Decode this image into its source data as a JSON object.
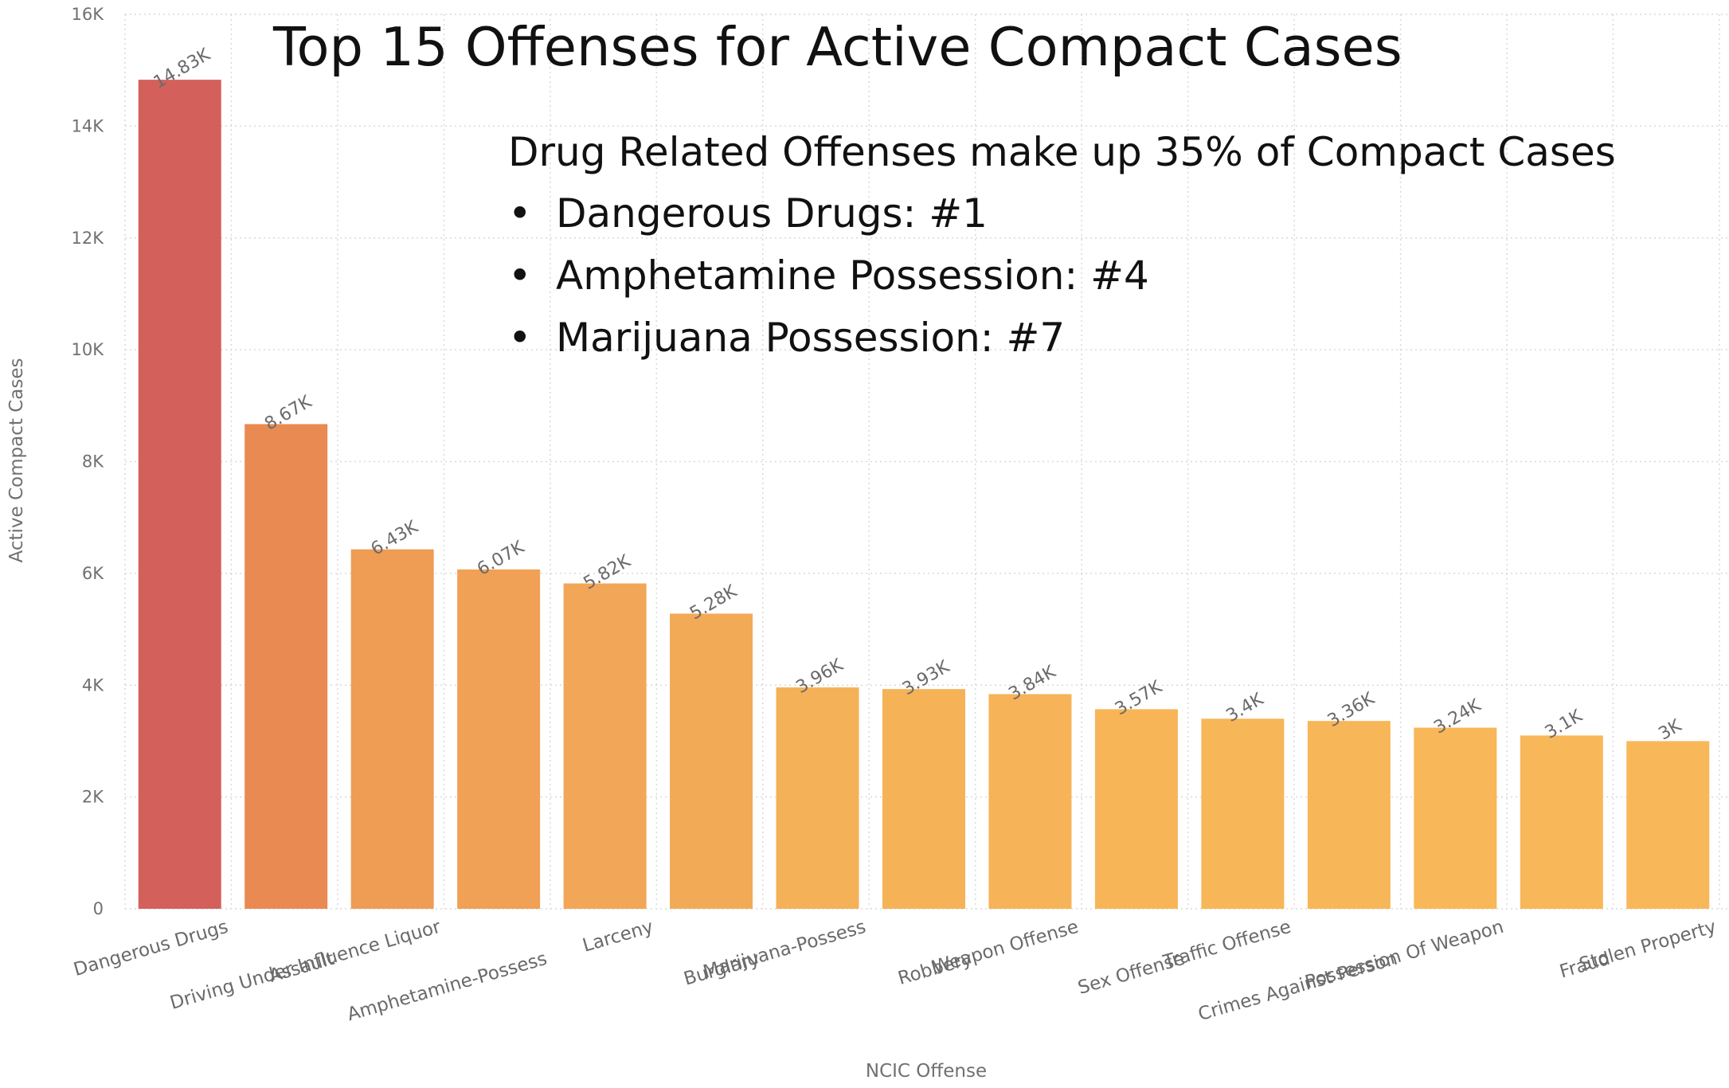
{
  "chart_data": {
    "type": "bar",
    "title": "Top 15 Offenses for Active Compact Cases",
    "xlabel": "NCIC Offense",
    "ylabel": "Active Compact Cases",
    "ylim": [
      0,
      16000
    ],
    "yticks": [
      0,
      2000,
      4000,
      6000,
      8000,
      10000,
      12000,
      14000,
      16000
    ],
    "ytick_labels": [
      "0",
      "2K",
      "4K",
      "6K",
      "8K",
      "10K",
      "12K",
      "14K",
      "16K"
    ],
    "grid": true,
    "categories": [
      "Dangerous Drugs",
      "Assault",
      "Driving Under Influence Liquor",
      "Amphetamine-Possess",
      "Larceny",
      "Burglary",
      "Marijuana-Possess",
      "Robbery",
      "Weapon Offense",
      "Sex Offense",
      "Traffic Offense",
      "Crimes Against Person",
      "Possession Of Weapon",
      "Fraud",
      "Stolen Property"
    ],
    "values": [
      14830,
      8670,
      6430,
      6070,
      5820,
      5280,
      3960,
      3930,
      3840,
      3570,
      3400,
      3360,
      3240,
      3100,
      3000
    ],
    "data_labels": [
      "14.83K",
      "8.67K",
      "6.43K",
      "6.07K",
      "5.82K",
      "5.28K",
      "3.96K",
      "3.93K",
      "3.84K",
      "3.57K",
      "3.4K",
      "3.36K",
      "3.24K",
      "3.1K",
      "3K"
    ],
    "colors": [
      "#d4605c",
      "#e98a53",
      "#ef9c55",
      "#f0a156",
      "#f2a657",
      "#f3aa57",
      "#f5b157",
      "#f5b257",
      "#f6b358",
      "#f7b558",
      "#f7b658",
      "#f7b658",
      "#f8b758",
      "#f8b758",
      "#f8b859"
    ],
    "annotation": {
      "heading": "Drug Related Offenses make up 35% of Compact Cases",
      "bullets": [
        "Dangerous Drugs: #1",
        "Amphetamine Possession: #4",
        "Marijuana Possession: #7"
      ]
    }
  }
}
